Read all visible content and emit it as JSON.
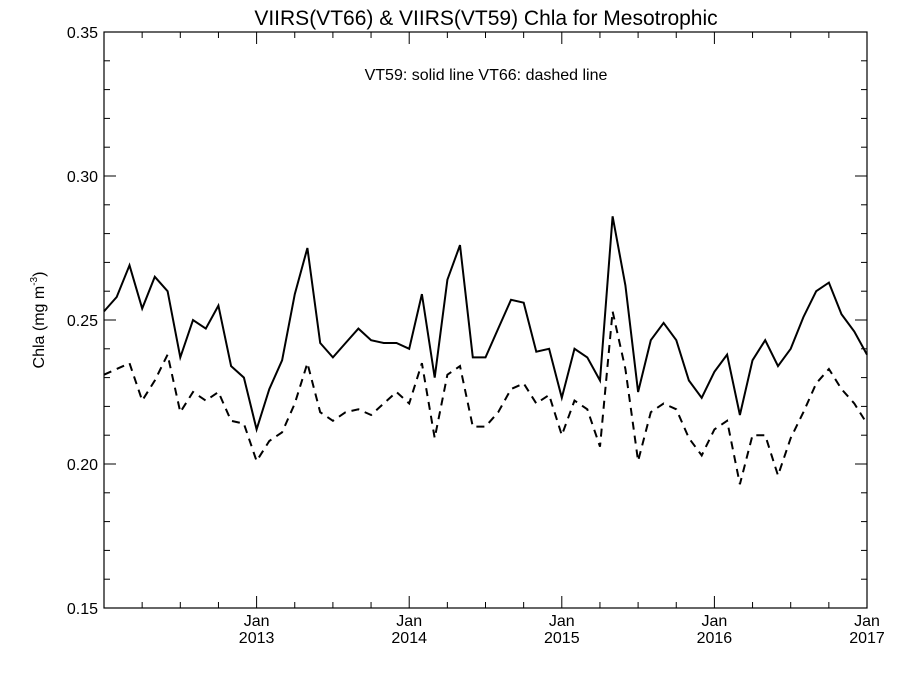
{
  "chart_data": {
    "type": "line",
    "title": "VIIRS(VT66) & VIIRS(VT59)  Chla for Mesotrophic",
    "annotation": "VT59: solid line   VT66: dashed line",
    "ylabel": "Chla (mg m",
    "ylabel_superscript": "-3",
    "ylabel_close": ")",
    "ylim": [
      0.15,
      0.35
    ],
    "yticks": [
      "0.15",
      "0.20",
      "0.25",
      "0.30",
      "0.35"
    ],
    "xlim": [
      2012.0,
      2017.0
    ],
    "xticks": [
      {
        "month": "Jan",
        "year": "2013",
        "value": 2013.0
      },
      {
        "month": "Jan",
        "year": "2014",
        "value": 2014.0
      },
      {
        "month": "Jan",
        "year": "2015",
        "value": 2015.0
      },
      {
        "month": "Jan",
        "year": "2016",
        "value": 2016.0
      },
      {
        "month": "Jan",
        "year": "2017",
        "value": 2017.0
      }
    ],
    "grid": false,
    "x": [
      2012.0,
      2012.083,
      2012.167,
      2012.25,
      2012.333,
      2012.417,
      2012.5,
      2012.583,
      2012.667,
      2012.75,
      2012.833,
      2012.917,
      2013.0,
      2013.083,
      2013.167,
      2013.25,
      2013.333,
      2013.417,
      2013.5,
      2013.583,
      2013.667,
      2013.75,
      2013.833,
      2013.917,
      2014.0,
      2014.083,
      2014.167,
      2014.25,
      2014.333,
      2014.417,
      2014.5,
      2014.583,
      2014.667,
      2014.75,
      2014.833,
      2014.917,
      2015.0,
      2015.083,
      2015.167,
      2015.25,
      2015.333,
      2015.417,
      2015.5,
      2015.583,
      2015.667,
      2015.75,
      2015.833,
      2015.917,
      2016.0,
      2016.083,
      2016.167,
      2016.25,
      2016.333,
      2016.417,
      2016.5,
      2016.583,
      2016.667,
      2016.75,
      2016.833,
      2016.917,
      2017.0
    ],
    "series": [
      {
        "name": "VT59",
        "style": "solid",
        "color": "#000000",
        "values": [
          0.253,
          0.258,
          0.269,
          0.254,
          0.265,
          0.26,
          0.237,
          0.25,
          0.247,
          0.255,
          0.234,
          0.23,
          0.212,
          0.226,
          0.236,
          0.259,
          0.275,
          0.242,
          0.237,
          0.242,
          0.247,
          0.243,
          0.242,
          0.242,
          0.24,
          0.259,
          0.23,
          0.264,
          0.276,
          0.237,
          0.237,
          0.247,
          0.257,
          0.256,
          0.239,
          0.24,
          0.223,
          0.24,
          0.237,
          0.229,
          0.286,
          0.262,
          0.225,
          0.243,
          0.249,
          0.243,
          0.229,
          0.223,
          0.232,
          0.238,
          0.217,
          0.236,
          0.243,
          0.234,
          0.24,
          0.251,
          0.26,
          0.263,
          0.252,
          0.246,
          0.238
        ]
      },
      {
        "name": "VT66",
        "style": "dashed",
        "color": "#000000",
        "values": [
          0.231,
          0.233,
          0.235,
          0.222,
          0.229,
          0.238,
          0.218,
          0.225,
          0.222,
          0.225,
          0.215,
          0.214,
          0.201,
          0.208,
          0.211,
          0.221,
          0.235,
          0.218,
          0.215,
          0.218,
          0.219,
          0.217,
          0.221,
          0.225,
          0.221,
          0.235,
          0.209,
          0.231,
          0.234,
          0.213,
          0.213,
          0.218,
          0.226,
          0.228,
          0.221,
          0.224,
          0.21,
          0.222,
          0.219,
          0.206,
          0.253,
          0.233,
          0.201,
          0.218,
          0.221,
          0.219,
          0.209,
          0.203,
          0.212,
          0.215,
          0.193,
          0.21,
          0.21,
          0.196,
          0.209,
          0.218,
          0.228,
          0.233,
          0.226,
          0.221,
          0.214
        ]
      }
    ]
  }
}
